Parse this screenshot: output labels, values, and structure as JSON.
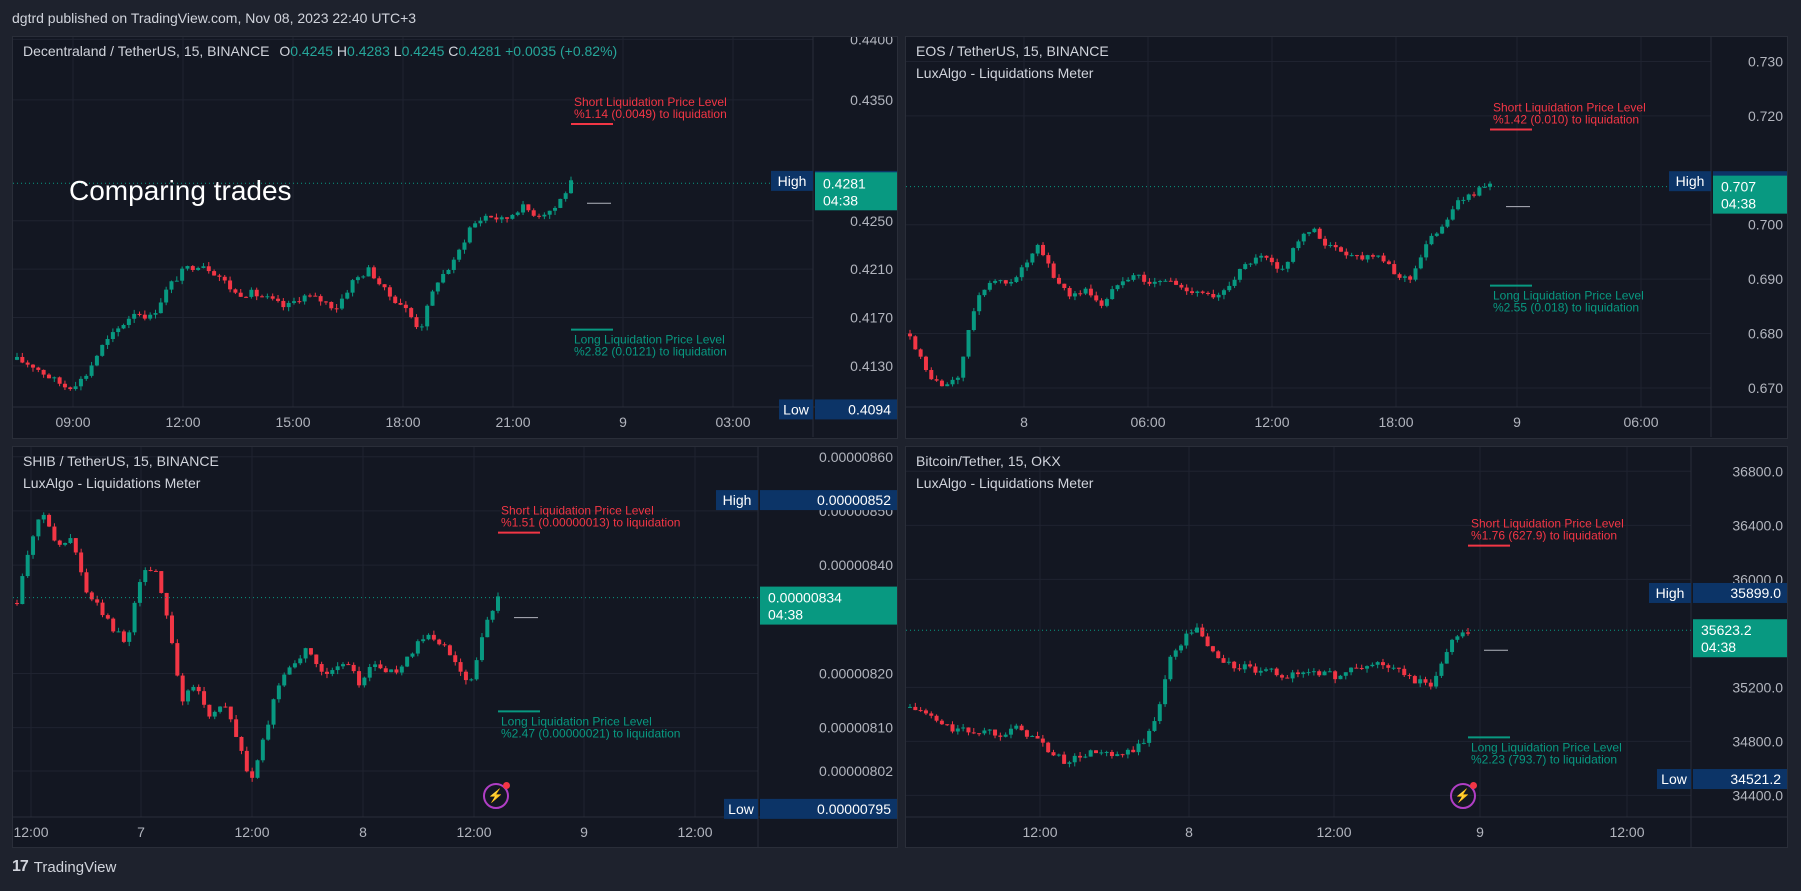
{
  "header": {
    "published": "dgtrd published on TradingView.com, Nov 08, 2023 22:40 UTC+3"
  },
  "footer": {
    "brand": "TradingView"
  },
  "overlay": {
    "text": "Comparing trades"
  },
  "colors": {
    "up": "#089981",
    "down": "#f23645",
    "bg": "#131722",
    "grid": "#1f2330",
    "long": "#089981",
    "short": "#f23645",
    "badge": "#0c3467"
  },
  "chart_data": [
    {
      "type": "candlestick",
      "title": "Decentraland / TetherUS, 15, BINANCE",
      "subtitle": "",
      "ohlc": {
        "o_label": "O",
        "o": "0.4245",
        "h_label": "H",
        "h": "0.4283",
        "l_label": "L",
        "l": "0.4245",
        "c_label": "C",
        "c": "0.4281",
        "change": "+0.0035 (+0.82%)"
      },
      "y_ticks": [
        "0.4400",
        "0.4350",
        "0.4250",
        "0.4210",
        "0.4170",
        "0.4130"
      ],
      "y_tick_values": [
        0.44,
        0.435,
        0.425,
        0.421,
        0.417,
        0.413
      ],
      "ylim": [
        0.4096,
        0.4402
      ],
      "x_ticks": [
        "09:00",
        "12:00",
        "15:00",
        "18:00",
        "21:00",
        "9",
        "03:00"
      ],
      "high": {
        "label": "High",
        "value": "0.4283"
      },
      "low": {
        "label": "Low",
        "value": "0.4094"
      },
      "last": {
        "value": "0.4281",
        "countdown": "04:38"
      },
      "short_liq": {
        "title": "Short Liquidation Price Level",
        "detail": "%1.14 (0.0049) to liquidation",
        "price": 0.433
      },
      "long_liq": {
        "title": "Long Liquidation Price Level",
        "detail": "%2.82 (0.0121) to liquidation",
        "price": 0.416
      },
      "series_path": [
        0.4135,
        0.413,
        0.412,
        0.4112,
        0.412,
        0.4145,
        0.416,
        0.4175,
        0.417,
        0.4195,
        0.421,
        0.4215,
        0.4205,
        0.419,
        0.419,
        0.4185,
        0.4178,
        0.4188,
        0.4185,
        0.4178,
        0.42,
        0.421,
        0.419,
        0.418,
        0.416,
        0.42,
        0.4215,
        0.4245,
        0.4255,
        0.425,
        0.4262,
        0.4255,
        0.426,
        0.4281
      ]
    },
    {
      "type": "candlestick",
      "title": "EOS / TetherUS, 15, BINANCE",
      "subtitle": "LuxAlgo - Liquidations Meter",
      "y_ticks": [
        "0.730",
        "0.720",
        "0.700",
        "0.690",
        "0.680",
        "0.670"
      ],
      "y_tick_values": [
        0.73,
        0.72,
        0.7,
        0.69,
        0.68,
        0.67
      ],
      "ylim": [
        0.6665,
        0.7345
      ],
      "x_ticks": [
        "8",
        "06:00",
        "12:00",
        "18:00",
        "9",
        "06:00"
      ],
      "high": {
        "label": "High",
        "value": "0.708"
      },
      "low": {
        "label": "Low",
        "value": ""
      },
      "last": {
        "value": "0.707",
        "countdown": "04:38"
      },
      "short_liq": {
        "title": "Short Liquidation Price Level",
        "detail": "%1.42 (0.010) to liquidation",
        "price": 0.7175
      },
      "long_liq": {
        "title": "Long Liquidation Price Level",
        "detail": "%2.55 (0.018) to liquidation",
        "price": 0.6888
      },
      "series_path": [
        0.68,
        0.673,
        0.67,
        0.672,
        0.685,
        0.69,
        0.689,
        0.692,
        0.696,
        0.69,
        0.687,
        0.688,
        0.685,
        0.69,
        0.691,
        0.689,
        0.69,
        0.688,
        0.688,
        0.686,
        0.69,
        0.693,
        0.694,
        0.691,
        0.697,
        0.699,
        0.696,
        0.695,
        0.694,
        0.695,
        0.691,
        0.69,
        0.696,
        0.7,
        0.704,
        0.706,
        0.707
      ]
    },
    {
      "type": "candlestick",
      "title": "SHIB / TetherUS, 15, BINANCE",
      "subtitle": "LuxAlgo - Liquidations Meter",
      "y_ticks": [
        "0.00000860",
        "0.00000850",
        "0.00000840",
        "0.00000820",
        "0.00000810",
        "0.00000802"
      ],
      "y_tick_values": [
        8.6e-06,
        8.5e-06,
        8.4e-06,
        8.2e-06,
        8.1e-06,
        8.02e-06
      ],
      "ylim": [
        7.935e-06,
        8.618e-06
      ],
      "x_ticks": [
        "12:00",
        "7",
        "12:00",
        "8",
        "12:00",
        "9",
        "12:00"
      ],
      "high": {
        "label": "High",
        "value": "0.00000852"
      },
      "low": {
        "label": "Low",
        "value": "0.00000795"
      },
      "last": {
        "value": "0.00000834",
        "countdown": "04:38"
      },
      "short_liq": {
        "title": "Short Liquidation Price Level",
        "detail": "%1.51 (0.00000013) to liquidation",
        "price": 8.46e-06
      },
      "long_liq": {
        "title": "Long Liquidation Price Level",
        "detail": "%2.47 (0.00000021) to liquidation",
        "price": 8.13e-06
      },
      "series_path": [
        8.33e-06,
        8.45e-06,
        8.5e-06,
        8.43e-06,
        8.45e-06,
        8.35e-06,
        8.32e-06,
        8.28e-06,
        8.26e-06,
        8.38e-06,
        8.4e-06,
        8.3e-06,
        8.15e-06,
        8.18e-06,
        8.12e-06,
        8.15e-06,
        8.08e-06,
        8e-06,
        8.08e-06,
        8.18e-06,
        8.22e-06,
        8.24e-06,
        8.21e-06,
        8.2e-06,
        8.22e-06,
        8.18e-06,
        8.22e-06,
        8.2e-06,
        8.21e-06,
        8.25e-06,
        8.27e-06,
        8.25e-06,
        8.22e-06,
        8.18e-06,
        8.28e-06,
        8.34e-06
      ]
    },
    {
      "type": "candlestick",
      "title": "Bitcoin/Tether, 15, OKX",
      "subtitle": "LuxAlgo - Liquidations Meter",
      "y_ticks": [
        "36800.0",
        "36400.0",
        "36000.0",
        "35200.0",
        "34800.0",
        "34400.0"
      ],
      "y_tick_values": [
        36800,
        36400,
        36000,
        35200,
        34800,
        34400
      ],
      "ylim": [
        34240,
        36980
      ],
      "x_ticks": [
        "12:00",
        "8",
        "12:00",
        "9",
        "12:00"
      ],
      "high": {
        "label": "High",
        "value": "35899.0"
      },
      "low": {
        "label": "Low",
        "value": "34521.2"
      },
      "last": {
        "value": "35623.2",
        "countdown": "04:38"
      },
      "short_liq": {
        "title": "Short Liquidation Price Level",
        "detail": "%1.76 (627.9) to liquidation",
        "price": 36250
      },
      "long_liq": {
        "title": "Long Liquidation Price Level",
        "detail": "%2.23 (793.7) to liquidation",
        "price": 34830
      },
      "series_path": [
        35050,
        35020,
        34950,
        34900,
        34880,
        34870,
        34880,
        34860,
        34900,
        34860,
        34800,
        34700,
        34650,
        34680,
        34720,
        34700,
        34680,
        34730,
        34780,
        35000,
        35400,
        35550,
        35650,
        35500,
        35400,
        35350,
        35350,
        35300,
        35320,
        35280,
        35300,
        35330,
        35300,
        35280,
        35330,
        35350,
        35380,
        35350,
        35300,
        35250,
        35200,
        35380,
        35600,
        35623
      ]
    }
  ]
}
